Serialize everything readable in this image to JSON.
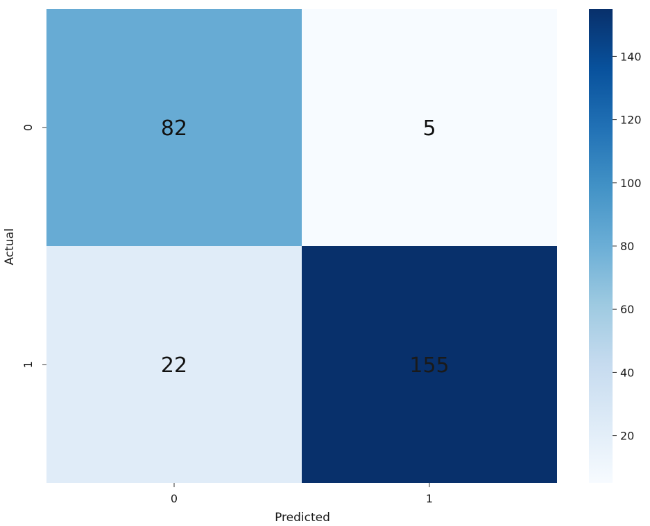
{
  "chart_data": {
    "type": "heatmap",
    "title": "",
    "xlabel": "Predicted",
    "ylabel": "Actual",
    "x_categories": [
      "0",
      "1"
    ],
    "y_categories": [
      "0",
      "1"
    ],
    "values": [
      [
        82,
        5
      ],
      [
        22,
        155
      ]
    ],
    "colormap": "Blues",
    "colormap_stops": [
      "#f7fbff",
      "#deebf7",
      "#c6dbef",
      "#9ecae1",
      "#6baed6",
      "#4292c6",
      "#2171b5",
      "#08519c",
      "#08306b"
    ],
    "colorbar": {
      "range": [
        5,
        155
      ],
      "ticks": [
        20,
        40,
        60,
        80,
        100,
        120,
        140
      ]
    },
    "grid": false,
    "annotations_shown": true
  }
}
